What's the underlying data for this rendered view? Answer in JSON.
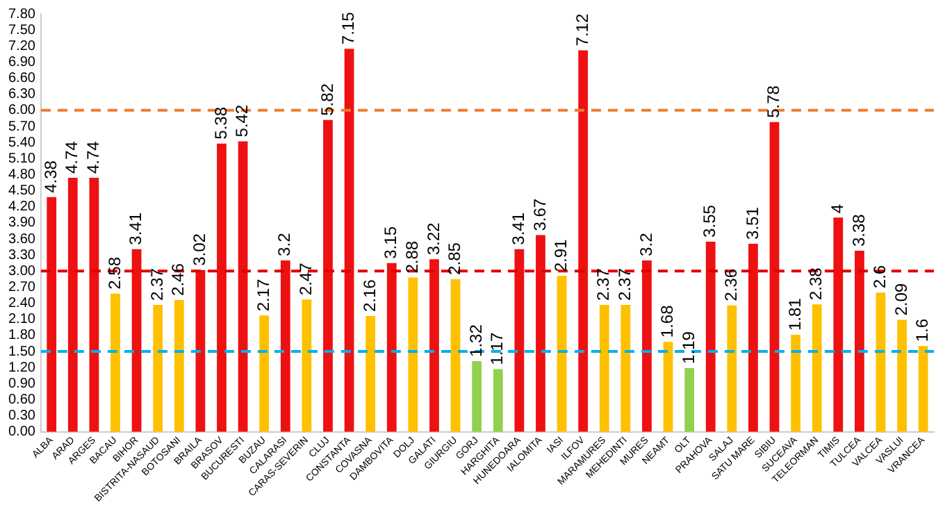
{
  "chart_data": {
    "type": "bar",
    "categories": [
      "ALBA",
      "ARAD",
      "ARGES",
      "BACAU",
      "BIHOR",
      "BISTRITA-NASAUD",
      "BOTOSANI",
      "BRAILA",
      "BRASOV",
      "BUCURESTI",
      "BUZAU",
      "CALARASI",
      "CARAS-SEVERIN",
      "CLUJ",
      "CONSTANTA",
      "COVASNA",
      "DAMBOVITA",
      "DOLJ",
      "GALATI",
      "GIURGIU",
      "GORJ",
      "HARGHITA",
      "HUNEDOARA",
      "IALOMITA",
      "IASI",
      "ILFOV",
      "MARAMURES",
      "MEHEDINTI",
      "MURES",
      "NEAMT",
      "OLT",
      "PRAHOVA",
      "SALAJ",
      "SATU MARE",
      "SIBIU",
      "SUCEAVA",
      "TELEORMAN",
      "TIMIS",
      "TULCEA",
      "VALCEA",
      "VASLUI",
      "VRANCEA"
    ],
    "values": [
      4.38,
      4.74,
      4.74,
      2.58,
      3.41,
      2.37,
      2.46,
      3.02,
      5.38,
      5.42,
      2.17,
      3.2,
      2.47,
      5.82,
      7.15,
      2.16,
      3.15,
      2.88,
      3.22,
      2.85,
      1.32,
      1.17,
      3.41,
      3.67,
      2.91,
      7.12,
      2.37,
      2.37,
      3.2,
      1.68,
      1.19,
      3.55,
      2.36,
      3.51,
      5.78,
      1.81,
      2.38,
      4,
      3.38,
      2.6,
      2.09,
      1.6
    ],
    "colors": [
      "#ee1111",
      "#ee1111",
      "#ee1111",
      "#ffc000",
      "#ee1111",
      "#ffc000",
      "#ffc000",
      "#ee1111",
      "#ee1111",
      "#ee1111",
      "#ffc000",
      "#ee1111",
      "#ffc000",
      "#ee1111",
      "#ee1111",
      "#ffc000",
      "#ee1111",
      "#ffc000",
      "#ee1111",
      "#ffc000",
      "#92d050",
      "#92d050",
      "#ee1111",
      "#ee1111",
      "#ffc000",
      "#ee1111",
      "#ffc000",
      "#ffc000",
      "#ee1111",
      "#ffc000",
      "#92d050",
      "#ee1111",
      "#ffc000",
      "#ee1111",
      "#ee1111",
      "#ffc000",
      "#ffc000",
      "#ee1111",
      "#ee1111",
      "#ffc000",
      "#ffc000",
      "#ffc000"
    ],
    "ylim": [
      0,
      7.8
    ],
    "yticks": [
      {
        "value": 0,
        "label": "0.00"
      },
      {
        "value": 0.3,
        "label": "0.30"
      },
      {
        "value": 0.6,
        "label": "0.60"
      },
      {
        "value": 0.9,
        "label": "0.90"
      },
      {
        "value": 1.2,
        "label": "1.20"
      },
      {
        "value": 1.5,
        "label": "1.50"
      },
      {
        "value": 1.8,
        "label": "1.80"
      },
      {
        "value": 2.1,
        "label": "2.10"
      },
      {
        "value": 2.4,
        "label": "2.40"
      },
      {
        "value": 2.7,
        "label": "2.70"
      },
      {
        "value": 3,
        "label": "3.00"
      },
      {
        "value": 3.3,
        "label": "3.30"
      },
      {
        "value": 3.6,
        "label": "3.60"
      },
      {
        "value": 3.9,
        "label": "3.90"
      },
      {
        "value": 4.2,
        "label": "4.20"
      },
      {
        "value": 4.5,
        "label": "4.50"
      },
      {
        "value": 4.8,
        "label": "4.80"
      },
      {
        "value": 5.1,
        "label": "5.10"
      },
      {
        "value": 5.4,
        "label": "5.40"
      },
      {
        "value": 5.7,
        "label": "5.70"
      },
      {
        "value": 6,
        "label": "6.00"
      },
      {
        "value": 6.3,
        "label": "6.30"
      },
      {
        "value": 6.6,
        "label": "6.60"
      },
      {
        "value": 6.9,
        "label": "6.90"
      },
      {
        "value": 7.2,
        "label": "7.20"
      },
      {
        "value": 7.5,
        "label": "7.50"
      },
      {
        "value": 7.8,
        "label": "7.80"
      }
    ],
    "ref_lines": [
      {
        "axis": "y",
        "value": 6,
        "color": "#ed7d31",
        "line_style": "dashed"
      },
      {
        "axis": "y",
        "value": 3,
        "color": "#e00000",
        "line_style": "dashed"
      },
      {
        "axis": "y",
        "value": 1.5,
        "color": "#00b0f0",
        "line_style": "dashed"
      }
    ],
    "data_labels": true,
    "grid": false,
    "legend": false
  }
}
